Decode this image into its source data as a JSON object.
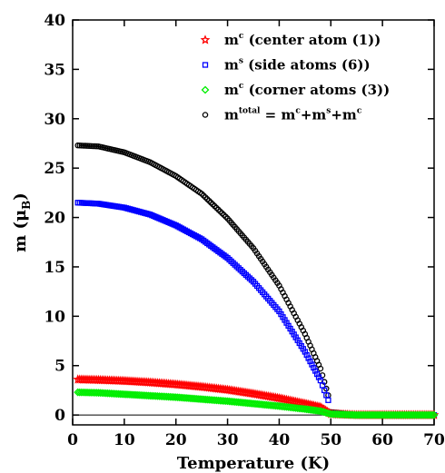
{
  "chart_data": {
    "type": "scatter",
    "title": "",
    "xlabel": "Temperature (K)",
    "ylabel": "m (μ",
    "ylabel_sub": "B",
    "ylabel_close": ")",
    "xlim": [
      0,
      70
    ],
    "ylim": [
      -1,
      40
    ],
    "xticks": [
      0,
      10,
      20,
      30,
      40,
      50,
      60,
      70
    ],
    "yticks": [
      0,
      5,
      10,
      15,
      20,
      25,
      30,
      35,
      40
    ],
    "grid": false,
    "legend_position": "top-right",
    "baseline_y": 0,
    "series": [
      {
        "name": "m^c (center atom (1))",
        "legend_text": "m",
        "legend_sup": "c",
        "legend_rest": " (center atom (1))",
        "color": "#ff0000",
        "marker": "star",
        "x": [
          1,
          5,
          10,
          15,
          20,
          25,
          30,
          35,
          40,
          45,
          48,
          50,
          55,
          60,
          65,
          70
        ],
        "y": [
          3.6,
          3.55,
          3.45,
          3.3,
          3.1,
          2.85,
          2.55,
          2.15,
          1.7,
          1.15,
          0.8,
          0.1,
          0.0,
          0.0,
          0.0,
          0.0
        ]
      },
      {
        "name": "m^s (side atoms (6))",
        "legend_text": "m",
        "legend_sup": "s",
        "legend_rest": " (side atoms (6))",
        "color": "#0000ff",
        "marker": "square",
        "x": [
          1,
          5,
          10,
          15,
          20,
          25,
          30,
          35,
          40,
          45,
          48,
          49.5,
          50,
          55,
          60,
          65,
          70
        ],
        "y": [
          21.5,
          21.4,
          21.0,
          20.3,
          19.2,
          17.8,
          15.9,
          13.5,
          10.5,
          6.4,
          3.5,
          1.5,
          0.2,
          0.0,
          0.0,
          0.0,
          0.0
        ]
      },
      {
        "name": "m^c (corner atoms (3))",
        "legend_text": "m",
        "legend_sup": "c",
        "legend_rest": " (corner atoms (3))",
        "color": "#00ee00",
        "marker": "diamond",
        "x": [
          1,
          5,
          10,
          15,
          20,
          25,
          30,
          35,
          40,
          45,
          48,
          50,
          55,
          60,
          65,
          70
        ],
        "y": [
          2.3,
          2.25,
          2.1,
          1.95,
          1.8,
          1.6,
          1.4,
          1.15,
          0.9,
          0.6,
          0.4,
          0.1,
          0.0,
          0.0,
          0.0,
          0.0
        ]
      },
      {
        "name": "m^total = m^c+m^s+m^c",
        "legend_text": "m",
        "legend_sup": "total",
        "legend_rest": " = m",
        "legend_sup2": "c",
        "legend_rest2": "+m",
        "legend_sup3": "s",
        "legend_rest3": "+m",
        "legend_sup4": "c",
        "color": "#000000",
        "marker": "circle",
        "x": [
          1,
          5,
          10,
          15,
          20,
          25,
          30,
          35,
          40,
          45,
          48,
          49.5,
          50,
          55,
          60,
          65,
          70
        ],
        "y": [
          27.3,
          27.2,
          26.6,
          25.6,
          24.2,
          22.4,
          19.9,
          16.9,
          13.1,
          8.2,
          4.7,
          2.0,
          0.3,
          0.0,
          0.0,
          0.0,
          0.0
        ]
      }
    ]
  }
}
